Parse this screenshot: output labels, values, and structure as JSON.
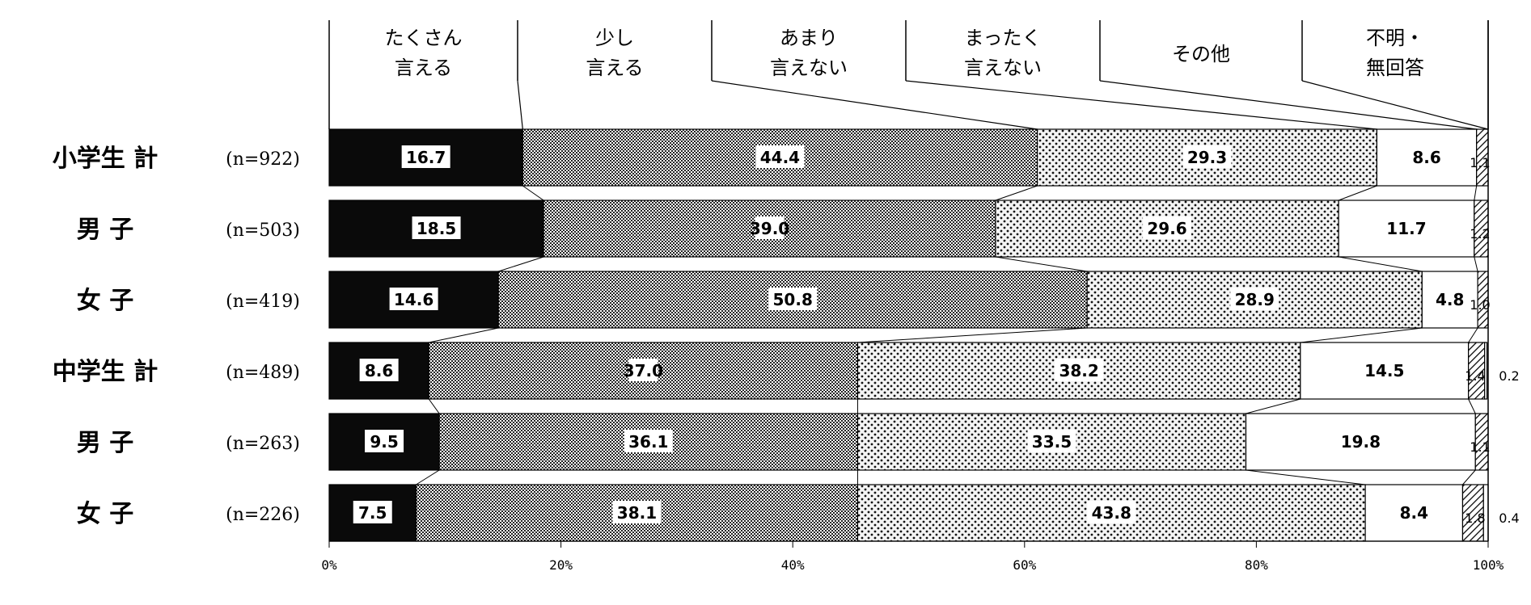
{
  "chart_data": {
    "type": "bar",
    "orientation": "horizontal",
    "stacked": true,
    "categories": [
      "小学生 計",
      "男 子",
      "女 子",
      "中学生 計",
      "男 子",
      "女 子"
    ],
    "sample_sizes": [
      "(n=922)",
      "(n=503)",
      "(n=419)",
      "(n=489)",
      "(n=263)",
      "(n=226)"
    ],
    "series": [
      {
        "name": "たくさん\n言える",
        "pattern": "solid-black",
        "values": [
          16.7,
          18.5,
          14.6,
          8.6,
          9.5,
          7.5
        ]
      },
      {
        "name": "少し\n言える",
        "pattern": "dense-check",
        "values": [
          44.4,
          39.0,
          50.8,
          37.0,
          36.1,
          38.1
        ]
      },
      {
        "name": "あまり\n言えない",
        "pattern": "dots",
        "values": [
          29.3,
          29.6,
          28.9,
          38.2,
          33.5,
          43.8
        ]
      },
      {
        "name": "まったく\n言えない",
        "pattern": "white",
        "values": [
          8.6,
          11.7,
          4.8,
          14.5,
          19.8,
          8.4
        ]
      },
      {
        "name": "その他",
        "pattern": "hatch",
        "values": [
          1.1,
          1.2,
          1.0,
          1.4,
          1.1,
          1.8
        ]
      },
      {
        "name": "不明・\n無回答",
        "pattern": "white",
        "values": [
          null,
          null,
          null,
          0.2,
          null,
          0.4
        ]
      }
    ],
    "x_ticks": [
      "0%",
      "20%",
      "40%",
      "60%",
      "80%",
      "100%"
    ],
    "xlim": [
      0,
      100
    ],
    "legend_position": "top"
  },
  "colors": {
    "ink": "#000000",
    "paper": "#ffffff",
    "dots_bg": "#f2f2f2"
  }
}
